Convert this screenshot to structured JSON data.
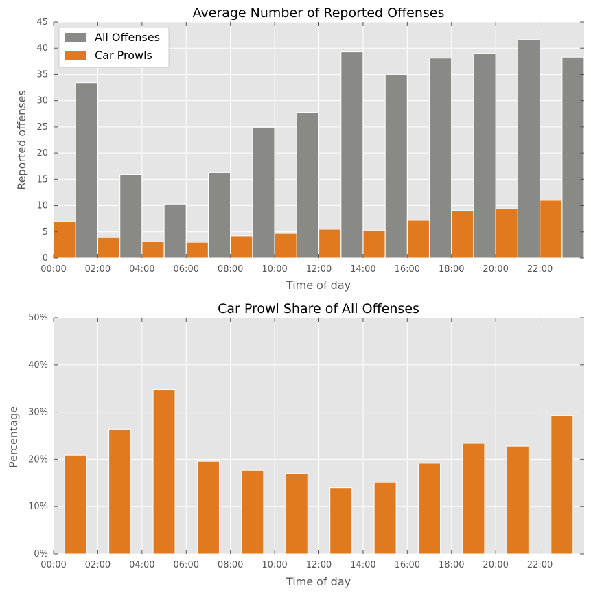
{
  "chart_data": [
    {
      "type": "bar",
      "title": "Average Number of Reported Offenses",
      "xlabel": "Time of day",
      "ylabel": "Reported offenses",
      "xlim": [
        0,
        24
      ],
      "ylim": [
        0,
        45
      ],
      "yticks": [
        0,
        5,
        10,
        15,
        20,
        25,
        30,
        35,
        40,
        45
      ],
      "xtick_labels": [
        "00:00",
        "02:00",
        "04:00",
        "06:00",
        "08:00",
        "10:00",
        "12:00",
        "14:00",
        "16:00",
        "18:00",
        "20:00",
        "22:00"
      ],
      "grid": true,
      "legend": "top-left",
      "series": [
        {
          "name": "All Offenses",
          "color": "#898a85",
          "x": [
            1.5,
            3.5,
            5.5,
            7.5,
            9.5,
            11.5,
            13.5,
            15.5,
            17.5,
            19.5,
            21.5,
            23.5
          ],
          "values": [
            33.4,
            15.9,
            10.3,
            16.3,
            24.8,
            27.8,
            39.3,
            35.0,
            38.1,
            39.0,
            41.6,
            38.3
          ]
        },
        {
          "name": "Car Prowls",
          "color": "#e17a1e",
          "x": [
            0.5,
            2.5,
            4.5,
            6.5,
            8.5,
            10.5,
            12.5,
            14.5,
            16.5,
            18.5,
            20.5,
            22.5
          ],
          "values": [
            6.9,
            3.9,
            3.1,
            3.0,
            4.2,
            4.7,
            5.5,
            5.2,
            7.2,
            9.1,
            9.4,
            11.0
          ]
        }
      ]
    },
    {
      "type": "bar",
      "title": "Car Prowl Share of All Offenses",
      "xlabel": "Time of day",
      "ylabel": "Percentage",
      "xlim": [
        0,
        24
      ],
      "ylim": [
        0,
        50
      ],
      "yticks": [
        0,
        10,
        20,
        30,
        40,
        50
      ],
      "ytick_labels": [
        "0%",
        "10%",
        "20%",
        "30%",
        "40%",
        "50%"
      ],
      "xtick_labels": [
        "00:00",
        "02:00",
        "04:00",
        "06:00",
        "08:00",
        "10:00",
        "12:00",
        "14:00",
        "16:00",
        "18:00",
        "20:00",
        "22:00"
      ],
      "grid": true,
      "series": [
        {
          "color": "#e17a1e",
          "x": [
            1,
            3,
            5,
            7,
            9,
            11,
            13,
            15,
            17,
            19,
            21,
            23
          ],
          "values": [
            20.9,
            26.4,
            34.8,
            19.6,
            17.7,
            17.0,
            14.0,
            15.1,
            19.2,
            23.4,
            22.8,
            29.3
          ]
        }
      ]
    }
  ]
}
